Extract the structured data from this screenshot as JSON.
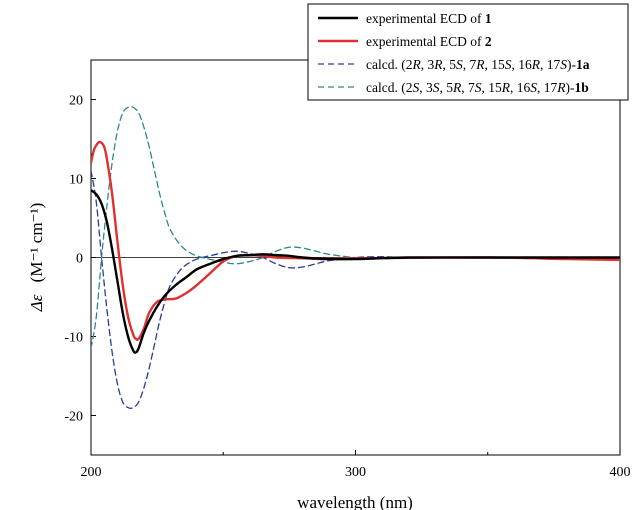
{
  "chart_data": {
    "type": "line",
    "xlabel": "wavelength (nm)",
    "ylabel_symbol": "Δε",
    "ylabel_units": "(M⁻¹ cm⁻¹)",
    "xlim": [
      200,
      400
    ],
    "ylim": [
      -25,
      25
    ],
    "xticks": [
      200,
      300,
      400
    ],
    "yticks": [
      -20,
      -10,
      0,
      10,
      20
    ],
    "zero_line": true,
    "grid": false,
    "legend_position": "top-right",
    "series": [
      {
        "name": "experimental ECD of 1",
        "label_parts": [
          {
            "t": "experimental ECD of "
          },
          {
            "t": "1",
            "b": true
          }
        ],
        "color": "#000000",
        "dash": "solid",
        "x": [
          200,
          202,
          204,
          206,
          208,
          210,
          212,
          214,
          216,
          217,
          218,
          220,
          222,
          225,
          228,
          232,
          236,
          240,
          245,
          250,
          255,
          260,
          265,
          270,
          275,
          280,
          290,
          300,
          320,
          350,
          400
        ],
        "y": [
          8.5,
          8.0,
          6.8,
          4.5,
          1.0,
          -3.0,
          -7.0,
          -10.0,
          -11.8,
          -12.0,
          -11.5,
          -9.5,
          -8.0,
          -6.2,
          -4.8,
          -3.5,
          -2.5,
          -1.5,
          -0.8,
          -0.2,
          0.2,
          0.3,
          0.4,
          0.3,
          0.2,
          0.0,
          -0.2,
          -0.2,
          0.0,
          0.0,
          0.0
        ]
      },
      {
        "name": "experimental ECD of 2",
        "label_parts": [
          {
            "t": "experimental ECD of "
          },
          {
            "t": "2",
            "b": true
          }
        ],
        "color": "#e03030",
        "dash": "solid",
        "x": [
          200,
          201,
          202,
          203,
          204,
          205,
          206,
          208,
          210,
          212,
          214,
          216,
          217,
          218,
          220,
          222,
          225,
          228,
          232,
          236,
          240,
          245,
          250,
          255,
          260,
          265,
          270,
          280,
          290,
          300,
          350,
          380,
          400
        ],
        "y": [
          12.0,
          13.5,
          14.2,
          14.6,
          14.5,
          14.0,
          12.5,
          8.0,
          2.0,
          -3.5,
          -7.5,
          -9.8,
          -10.3,
          -10.3,
          -9.0,
          -7.0,
          -5.6,
          -5.3,
          -5.2,
          -4.5,
          -3.5,
          -2.0,
          -0.5,
          0.2,
          0.3,
          0.2,
          0.0,
          -0.1,
          -0.2,
          -0.1,
          0.0,
          -0.2,
          -0.3
        ]
      },
      {
        "name": "calcd. (2R, 3R, 5S, 7R, 15S, 16R, 17S)-1a",
        "label_parts": [
          {
            "t": "calcd. (2"
          },
          {
            "t": "R",
            "i": true
          },
          {
            "t": ", 3"
          },
          {
            "t": "R",
            "i": true
          },
          {
            "t": ", 5"
          },
          {
            "t": "S",
            "i": true
          },
          {
            "t": ", 7"
          },
          {
            "t": "R",
            "i": true
          },
          {
            "t": ", 15"
          },
          {
            "t": "S",
            "i": true
          },
          {
            "t": ", 16"
          },
          {
            "t": "R",
            "i": true
          },
          {
            "t": ", 17"
          },
          {
            "t": "S",
            "i": true
          },
          {
            "t": ")-"
          },
          {
            "t": "1a",
            "b": true
          }
        ],
        "color": "#2a3a9a",
        "dash": "dashed",
        "x": [
          200,
          202,
          204,
          206,
          208,
          210,
          212,
          214,
          216,
          218,
          220,
          222,
          224,
          226,
          228,
          230,
          234,
          238,
          242,
          246,
          250,
          255,
          260,
          265,
          270,
          275,
          280,
          285,
          290,
          300,
          310,
          320,
          350,
          400
        ],
        "y": [
          11.0,
          7.0,
          0.0,
          -6.5,
          -12.0,
          -16.0,
          -18.3,
          -19.0,
          -19.0,
          -18.3,
          -16.5,
          -14.0,
          -11.0,
          -8.0,
          -5.5,
          -3.5,
          -1.5,
          -0.5,
          0.0,
          0.3,
          0.6,
          0.8,
          0.5,
          0.0,
          -0.8,
          -1.3,
          -1.2,
          -0.8,
          -0.4,
          0.0,
          0.1,
          0.0,
          0.0,
          0.0
        ]
      },
      {
        "name": "calcd. (2S, 3S, 5R, 7S, 15R, 16S, 17R)-1b",
        "label_parts": [
          {
            "t": "calcd. (2"
          },
          {
            "t": "S",
            "i": true
          },
          {
            "t": ", 3"
          },
          {
            "t": "S",
            "i": true
          },
          {
            "t": ", 5"
          },
          {
            "t": "R",
            "i": true
          },
          {
            "t": ", 7"
          },
          {
            "t": "S",
            "i": true
          },
          {
            "t": ", 15"
          },
          {
            "t": "R",
            "i": true
          },
          {
            "t": ", 16"
          },
          {
            "t": "S",
            "i": true
          },
          {
            "t": ", 17"
          },
          {
            "t": "R",
            "i": true
          },
          {
            "t": ")-"
          },
          {
            "t": "1b",
            "b": true
          }
        ],
        "color": "#2a8a8a",
        "dash": "dashed",
        "x": [
          200,
          202,
          204,
          206,
          208,
          210,
          212,
          214,
          216,
          218,
          220,
          222,
          224,
          226,
          228,
          230,
          234,
          238,
          242,
          246,
          250,
          255,
          260,
          265,
          270,
          275,
          280,
          285,
          290,
          300,
          310,
          320,
          350,
          400
        ],
        "y": [
          -11.5,
          -7.5,
          0.0,
          6.5,
          12.0,
          16.0,
          18.3,
          19.0,
          19.0,
          18.3,
          16.5,
          14.0,
          11.0,
          8.0,
          5.5,
          3.5,
          1.5,
          0.5,
          0.0,
          -0.3,
          -0.6,
          -0.8,
          -0.5,
          0.0,
          0.8,
          1.3,
          1.2,
          0.8,
          0.4,
          0.0,
          -0.1,
          0.0,
          0.0,
          0.0
        ]
      }
    ]
  }
}
